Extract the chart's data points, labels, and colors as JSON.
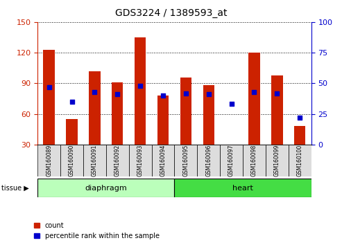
{
  "title": "GDS3224 / 1389593_at",
  "samples": [
    "GSM160089",
    "GSM160090",
    "GSM160091",
    "GSM160092",
    "GSM160093",
    "GSM160094",
    "GSM160095",
    "GSM160096",
    "GSM160097",
    "GSM160098",
    "GSM160099",
    "GSM160100"
  ],
  "count_values": [
    123,
    55,
    102,
    91,
    135,
    78,
    96,
    88,
    30,
    120,
    98,
    48
  ],
  "percentile_values": [
    47,
    35,
    43,
    41,
    48,
    40,
    42,
    41,
    33,
    43,
    42,
    22
  ],
  "groups": [
    {
      "label": "diaphragm",
      "start": 0,
      "end": 5,
      "color": "#bbffbb"
    },
    {
      "label": "heart",
      "start": 6,
      "end": 11,
      "color": "#44dd44"
    }
  ],
  "bar_color": "#cc2200",
  "dot_color": "#0000cc",
  "left_ylim": [
    30,
    150
  ],
  "right_ylim": [
    0,
    100
  ],
  "left_yticks": [
    30,
    60,
    90,
    120,
    150
  ],
  "right_yticks": [
    0,
    25,
    50,
    75,
    100
  ],
  "left_ycolor": "#cc2200",
  "right_ycolor": "#0000cc",
  "bar_width": 0.5,
  "legend_count_label": "count",
  "legend_pct_label": "percentile rank within the sample",
  "bg_color": "#ffffff",
  "label_area_color": "#dddddd"
}
